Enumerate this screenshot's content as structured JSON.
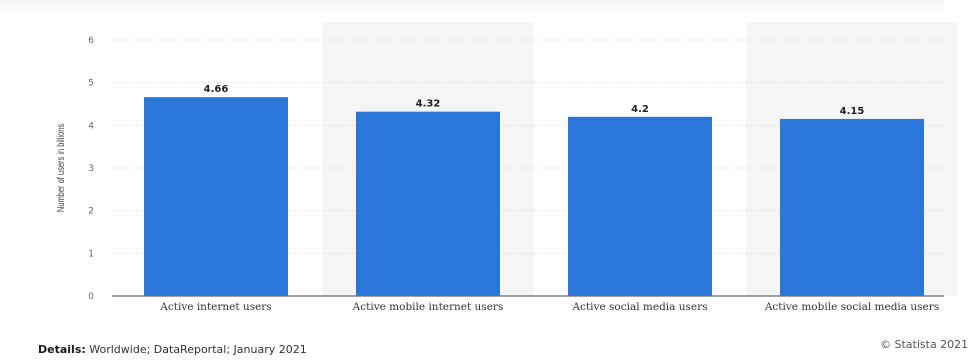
{
  "chart_data": {
    "type": "bar",
    "categories": [
      "Active internet users",
      "Active mobile internet users",
      "Active social media users",
      "Active mobile social media users"
    ],
    "values": [
      4.66,
      4.32,
      4.2,
      4.15
    ],
    "value_labels": [
      "4.66",
      "4.32",
      "4.2",
      "4.15"
    ],
    "ylabel": "Number of users in billions",
    "yticks": [
      0,
      1,
      2,
      3,
      4,
      5,
      6
    ],
    "ylim": [
      0,
      6
    ],
    "grid": true,
    "bar_color": "#2b76d9",
    "alt_band_color": "#f5f5f5"
  },
  "footer": {
    "details_label": "Details:",
    "details_text": " Worldwide; DataReportal; January 2021",
    "copyright": "© Statista 2021"
  }
}
